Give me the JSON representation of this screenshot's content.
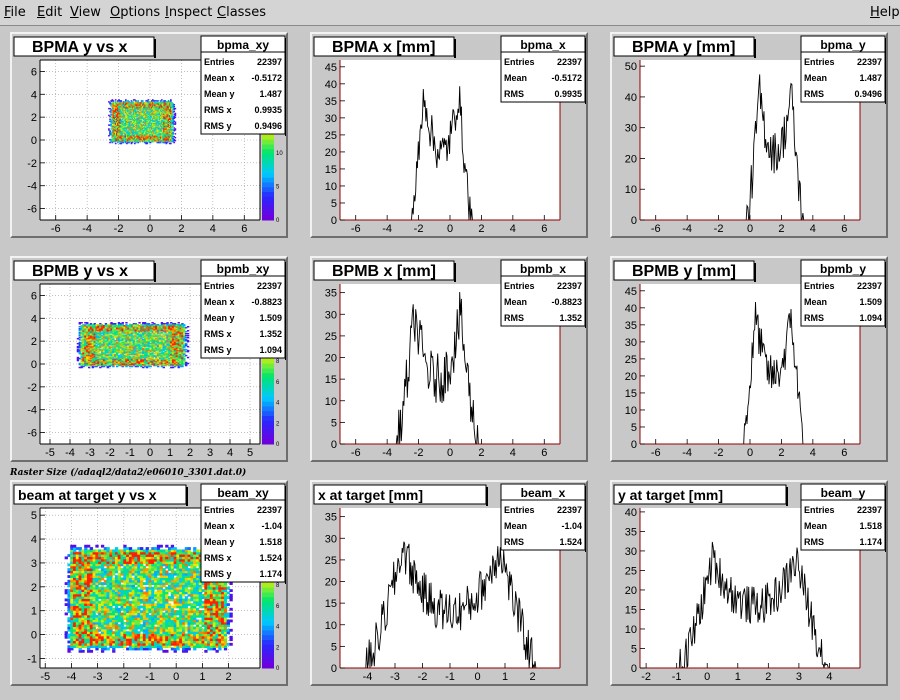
{
  "menu": {
    "items": [
      {
        "label": "File",
        "ul": "F",
        "rest": "ile"
      },
      {
        "label": "Edit",
        "ul": "E",
        "rest": "dit"
      },
      {
        "label": "View",
        "ul": "V",
        "rest": "iew"
      },
      {
        "label": "Options",
        "ul": "O",
        "rest": "ptions"
      },
      {
        "label": "Inspect",
        "ul": "I",
        "rest": "nspect"
      },
      {
        "label": "Classes",
        "ul": "C",
        "rest": "lasses"
      }
    ],
    "help": {
      "label": "Help",
      "ul": "H",
      "rest": "elp"
    }
  },
  "caption": "Raster Size (/adaql2/data2/e06010_3301.dat.0)",
  "colors": {
    "frame_line": "#8b0000",
    "histogram": "#000000",
    "pad_background": "#ffffff",
    "panel_background": "#c8c8c8"
  },
  "panels": [
    {
      "id": "bpma-xy",
      "title": "BPMA y vs x",
      "stats_name": "bpma_xy",
      "stats": [
        [
          "Entries",
          "22397"
        ],
        [
          "Mean x",
          "-0.5172"
        ],
        [
          "Mean y",
          "1.487"
        ],
        [
          "RMS x",
          "0.9935"
        ],
        [
          "RMS y",
          "0.9496"
        ]
      ],
      "chart_data": {
        "type": "heatmap",
        "title": "BPMA y vs x",
        "xlabel": "",
        "ylabel": "",
        "xlim": [
          -7,
          7
        ],
        "ylim": [
          -7,
          7
        ],
        "x_ticks": [
          -6,
          -4,
          -2,
          0,
          2,
          4,
          6
        ],
        "y_ticks": [
          -6,
          -4,
          -2,
          0,
          2,
          4,
          6
        ],
        "blob": {
          "x_range": [
            -2.3,
            1.3
          ],
          "y_range": [
            0,
            3.2
          ],
          "mean_x": -0.5172,
          "mean_y": 1.487,
          "rms_x": 0.9935,
          "rms_y": 0.9496,
          "entries": 22397
        },
        "z_ticks": [
          0,
          5,
          10,
          15
        ],
        "zmax": 17,
        "grid": true
      }
    },
    {
      "id": "bpma-x",
      "title": "BPMA x [mm]",
      "stats_name": "bpma_x",
      "stats": [
        [
          "Entries",
          "22397"
        ],
        [
          "Mean",
          "-0.5172"
        ],
        [
          "RMS",
          "0.9935"
        ]
      ],
      "chart_data": {
        "type": "bar",
        "title": "BPMA x [mm]",
        "xlabel": "",
        "ylabel": "",
        "xlim": [
          -7,
          7
        ],
        "ylim": [
          0,
          47
        ],
        "x_ticks": [
          -6,
          -4,
          -2,
          0,
          2,
          4,
          6
        ],
        "y_ticks": [
          0,
          5,
          10,
          15,
          20,
          25,
          30,
          35,
          40,
          45
        ],
        "profile": {
          "start": -2.5,
          "end": 1.4,
          "edge_peak": 38,
          "center_level": 20,
          "noise": 6
        },
        "grid": false
      }
    },
    {
      "id": "bpma-y",
      "title": "BPMA y [mm]",
      "stats_name": "bpma_y",
      "stats": [
        [
          "Entries",
          "22397"
        ],
        [
          "Mean",
          "1.487"
        ],
        [
          "RMS",
          "0.9496"
        ]
      ],
      "chart_data": {
        "type": "bar",
        "title": "BPMA y [mm]",
        "xlabel": "",
        "ylabel": "",
        "xlim": [
          -7,
          7
        ],
        "ylim": [
          0,
          52
        ],
        "x_ticks": [
          -6,
          -4,
          -2,
          0,
          2,
          4,
          6
        ],
        "y_ticks": [
          0,
          10,
          20,
          30,
          40,
          50
        ],
        "profile": {
          "start": -0.2,
          "end": 3.4,
          "edge_peak": 42,
          "center_level": 22,
          "noise": 7
        },
        "grid": false
      }
    },
    {
      "id": "bpmb-xy",
      "title": "BPMB y vs x",
      "stats_name": "bpmb_xy",
      "stats": [
        [
          "Entries",
          "22397"
        ],
        [
          "Mean x",
          "-0.8823"
        ],
        [
          "Mean y",
          "1.509"
        ],
        [
          "RMS x",
          "1.352"
        ],
        [
          "RMS y",
          "1.094"
        ]
      ],
      "chart_data": {
        "type": "heatmap",
        "title": "BPMB y vs x",
        "xlabel": "",
        "ylabel": "",
        "xlim": [
          -5.5,
          5.5
        ],
        "ylim": [
          -7,
          7
        ],
        "x_ticks": [
          -5,
          -4,
          -3,
          -2,
          -1,
          0,
          1,
          2,
          3,
          4,
          5
        ],
        "y_ticks": [
          -6,
          -4,
          -2,
          0,
          2,
          4,
          6
        ],
        "blob": {
          "x_range": [
            -3.3,
            1.6
          ],
          "y_range": [
            0,
            3.3
          ],
          "mean_x": -0.8823,
          "mean_y": 1.509,
          "rms_x": 1.352,
          "rms_y": 1.094,
          "entries": 22397
        },
        "z_ticks": [
          0,
          2,
          4,
          6,
          8,
          10
        ],
        "zmax": 11,
        "grid": true
      }
    },
    {
      "id": "bpmb-x",
      "title": "BPMB x [mm]",
      "stats_name": "bpmb_x",
      "stats": [
        [
          "Entries",
          "22397"
        ],
        [
          "Mean",
          "-0.8823"
        ],
        [
          "RMS",
          "1.352"
        ]
      ],
      "chart_data": {
        "type": "bar",
        "title": "BPMB x [mm]",
        "xlabel": "",
        "ylabel": "",
        "xlim": [
          -7,
          7
        ],
        "ylim": [
          0,
          37
        ],
        "x_ticks": [
          -6,
          -4,
          -2,
          0,
          2,
          4,
          6
        ],
        "y_ticks": [
          0,
          5,
          10,
          15,
          20,
          25,
          30,
          35
        ],
        "profile": {
          "start": -3.4,
          "end": 1.8,
          "edge_peak": 30,
          "center_level": 15,
          "noise": 6
        },
        "grid": false
      }
    },
    {
      "id": "bpmb-y",
      "title": "BPMB y [mm]",
      "stats_name": "bpmb_y",
      "stats": [
        [
          "Entries",
          "22397"
        ],
        [
          "Mean",
          "1.509"
        ],
        [
          "RMS",
          "1.094"
        ]
      ],
      "chart_data": {
        "type": "bar",
        "title": "BPMB y [mm]",
        "xlabel": "",
        "ylabel": "",
        "xlim": [
          -7,
          7
        ],
        "ylim": [
          0,
          47
        ],
        "x_ticks": [
          -6,
          -4,
          -2,
          0,
          2,
          4,
          6
        ],
        "y_ticks": [
          0,
          5,
          10,
          15,
          20,
          25,
          30,
          35,
          40,
          45
        ],
        "profile": {
          "start": -0.5,
          "end": 3.5,
          "edge_peak": 38,
          "center_level": 20,
          "noise": 6
        },
        "grid": false
      }
    },
    {
      "id": "beam-xy",
      "title": "beam at target y vs x",
      "stats_name": "beam_xy",
      "stats": [
        [
          "Entries",
          "22397"
        ],
        [
          "Mean x",
          "-1.04"
        ],
        [
          "Mean y",
          "1.518"
        ],
        [
          "RMS x",
          "1.524"
        ],
        [
          "RMS y",
          "1.174"
        ]
      ],
      "chart_data": {
        "type": "heatmap",
        "title": "beam at target y vs x",
        "xlabel": "",
        "ylabel": "",
        "xlim": [
          -5.2,
          3.2
        ],
        "ylim": [
          -1.4,
          5.3
        ],
        "x_ticks": [
          -5,
          -4,
          -3,
          -2,
          -1,
          0,
          1,
          2
        ],
        "y_ticks": [
          -1,
          0,
          1,
          2,
          3,
          4,
          5
        ],
        "blob": {
          "x_range": [
            -3.9,
            1.8
          ],
          "y_range": [
            -0.4,
            3.4
          ],
          "mean_x": -1.04,
          "mean_y": 1.518,
          "rms_x": 1.524,
          "rms_y": 1.174,
          "entries": 22397
        },
        "z_ticks": [
          0,
          2,
          4,
          6,
          8,
          10
        ],
        "zmax": 11,
        "grid": true
      }
    },
    {
      "id": "beam-x",
      "title": "x at target [mm]",
      "stats_name": "beam_x",
      "stats": [
        [
          "Entries",
          "22397"
        ],
        [
          "Mean",
          "-1.04"
        ],
        [
          "RMS",
          "1.524"
        ]
      ],
      "chart_data": {
        "type": "bar",
        "title": "x at target [mm]",
        "xlabel": "",
        "ylabel": "",
        "xlim": [
          -5,
          3
        ],
        "ylim": [
          0,
          37
        ],
        "x_ticks": [
          -4,
          -3,
          -2,
          -1,
          0,
          1,
          2
        ],
        "y_ticks": [
          0,
          5,
          10,
          15,
          20,
          25,
          30,
          35
        ],
        "profile": {
          "start": -4.1,
          "end": 2.2,
          "edge_peak": 28,
          "center_level": 13,
          "noise": 5
        },
        "grid": false
      }
    },
    {
      "id": "beam-y",
      "title": "y at target [mm]",
      "stats_name": "beam_y",
      "stats": [
        [
          "Entries",
          "22397"
        ],
        [
          "Mean",
          "1.518"
        ],
        [
          "RMS",
          "1.174"
        ]
      ],
      "chart_data": {
        "type": "bar",
        "title": "y at target [mm]",
        "xlabel": "",
        "ylabel": "",
        "xlim": [
          -2.2,
          5
        ],
        "ylim": [
          0,
          41
        ],
        "x_ticks": [
          -2,
          -1,
          0,
          1,
          2,
          3,
          4
        ],
        "y_ticks": [
          0,
          5,
          10,
          15,
          20,
          25,
          30,
          35,
          40
        ],
        "profile": {
          "start": -0.9,
          "end": 4.0,
          "edge_peak": 28,
          "center_level": 16,
          "noise": 5
        },
        "grid": false
      }
    }
  ]
}
